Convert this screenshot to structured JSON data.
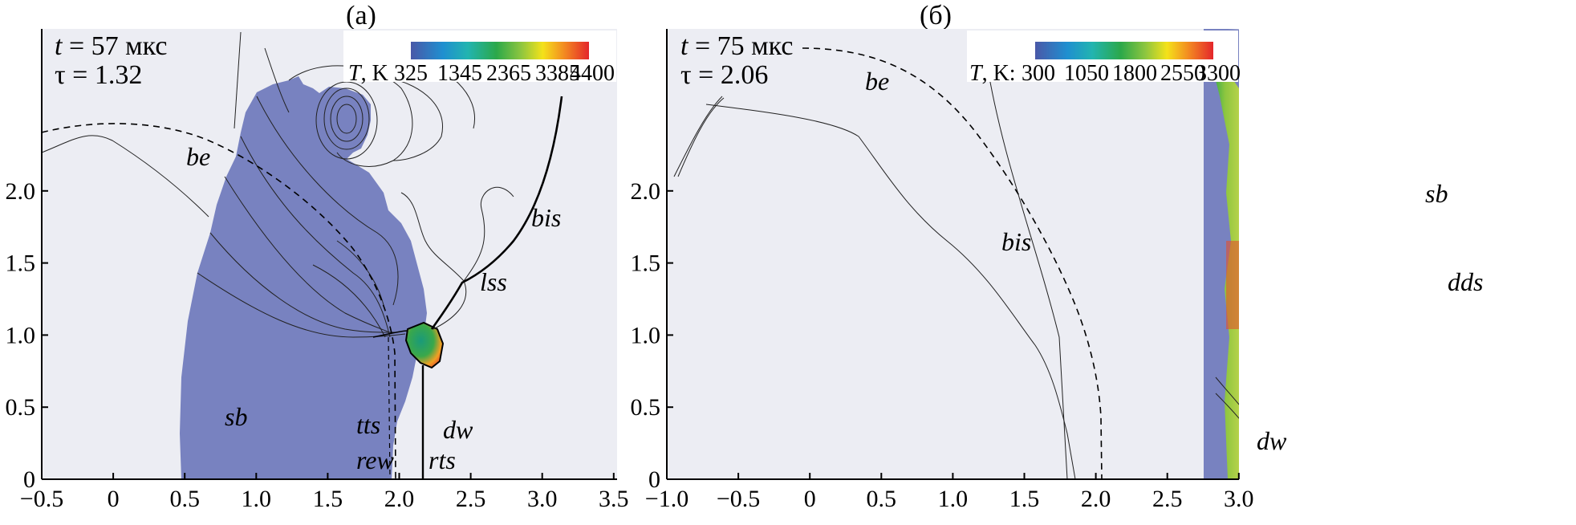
{
  "panels": [
    {
      "title": "(а)",
      "time": "57 мкс",
      "tau": "1.32",
      "colorbar": {
        "label": "K",
        "ticks": [
          "325",
          "1345",
          "2365",
          "3385",
          "4400"
        ]
      },
      "x_ticks": [
        "−0.5",
        "0",
        "0.5",
        "1.0",
        "1.5",
        "2.0",
        "2.5",
        "3.0",
        "3.5"
      ],
      "y_ticks": [
        "0",
        "0.5",
        "1.0",
        "1.5",
        "2.0"
      ],
      "labels": {
        "be": "be",
        "sb": "sb",
        "tts": "tts",
        "rew": "rew",
        "dw": "dw",
        "rts": "rts",
        "lss": "lss",
        "bis": "bis"
      }
    },
    {
      "title": "(б)",
      "time": "75 мкс",
      "tau": "2.06",
      "colorbar": {
        "label": "K:",
        "ticks": [
          "300",
          "1050",
          "1800",
          "2550",
          "3300"
        ]
      },
      "x_ticks": [
        "−1.0",
        "−0.5",
        "0",
        "0.5",
        "1.0",
        "1.5",
        "2.0",
        "2.5",
        "3.0"
      ],
      "y_ticks": [
        "0",
        "0.5",
        "1.0",
        "1.5",
        "2.0"
      ],
      "labels": {
        "be": "be",
        "bis": "bis",
        "sb": "sb",
        "dds": "dds",
        "dw": "dw"
      }
    }
  ],
  "colors": {
    "background": "#ecedf3",
    "gas": "#7882c0"
  }
}
